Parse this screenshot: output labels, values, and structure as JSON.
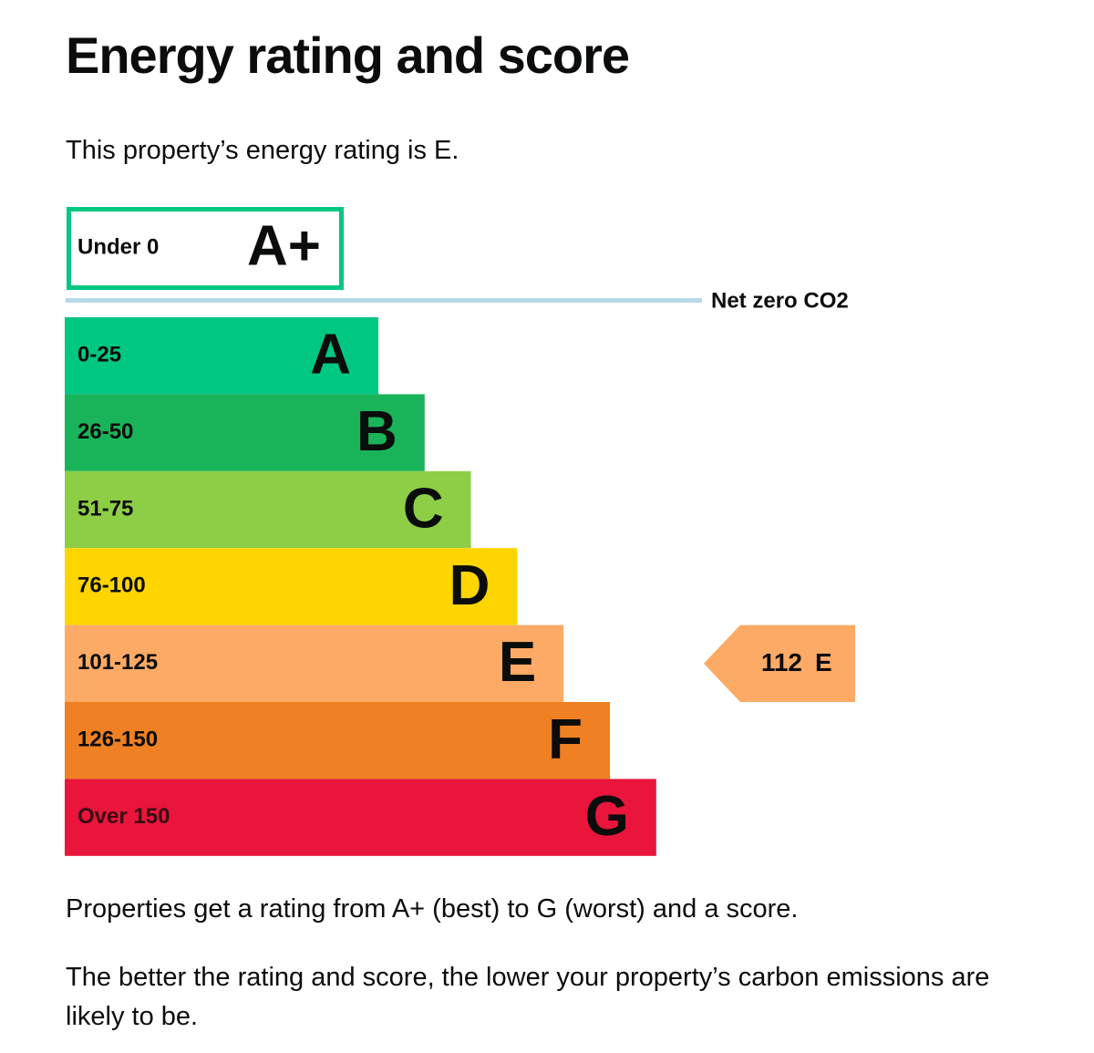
{
  "header": {
    "title": "Energy rating and score"
  },
  "intro": "This property’s energy rating is E.",
  "chart": {
    "top_band": {
      "range": "Under 0",
      "letter": "A+",
      "color": "#00c781"
    },
    "net_zero_label": "Net zero CO2",
    "bands": [
      {
        "range": "0-25",
        "letter": "A",
        "color": "#00c781"
      },
      {
        "range": "26-50",
        "letter": "B",
        "color": "#19b459"
      },
      {
        "range": "51-75",
        "letter": "C",
        "color": "#8dce46"
      },
      {
        "range": "76-100",
        "letter": "D",
        "color": "#ffd500"
      },
      {
        "range": "101-125",
        "letter": "E",
        "color": "#fcaa65"
      },
      {
        "range": "126-150",
        "letter": "F",
        "color": "#ef8023"
      },
      {
        "range": "Over 150",
        "letter": "G",
        "color": "#e9153b"
      }
    ],
    "current": {
      "score": 112,
      "rating": "E"
    }
  },
  "paragraphs": [
    "Properties get a rating from A+ (best) to G (worst) and a score.",
    "The better the rating and score, the lower your property’s carbon emissions are likely to be."
  ]
}
